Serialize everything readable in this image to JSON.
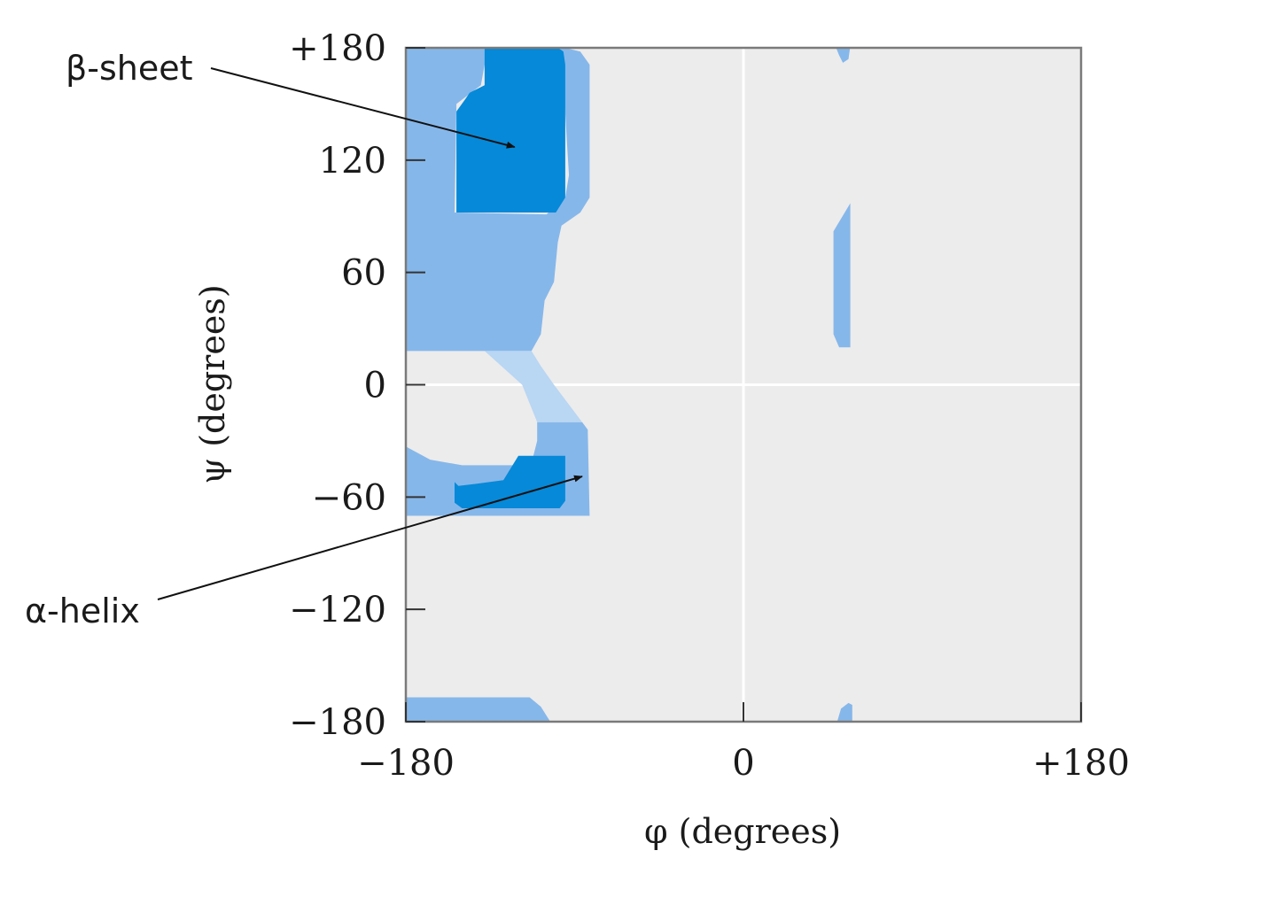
{
  "chart_data": {
    "type": "area",
    "xlabel": "φ (degrees)",
    "ylabel": "ψ (degrees)",
    "xlim": [
      -180,
      180
    ],
    "ylim": [
      -180,
      180
    ],
    "x_ticks": [
      {
        "value": -180,
        "label": "−180"
      },
      {
        "value": 0,
        "label": "0"
      },
      {
        "value": 180,
        "label": "+180"
      }
    ],
    "y_ticks": [
      {
        "value": 180,
        "label": "+180"
      },
      {
        "value": 120,
        "label": "120"
      },
      {
        "value": 60,
        "label": "60"
      },
      {
        "value": 0,
        "label": "0"
      },
      {
        "value": -60,
        "label": "−60"
      },
      {
        "value": -120,
        "label": "−120"
      },
      {
        "value": -180,
        "label": "−180"
      }
    ],
    "colors": {
      "background": "#ececec",
      "frame": "#7a7a7a",
      "gridline": "#ffffff",
      "allowed": "#86b7ea",
      "favored": "#0689d8",
      "bridge": "#b9d6f3"
    },
    "regions": [
      {
        "kind": "allowed",
        "points": [
          [
            -180,
            180
          ],
          [
            -138,
            180
          ],
          [
            -138,
            171
          ],
          [
            -132,
            172
          ],
          [
            -128,
            182
          ],
          [
            -180,
            182
          ]
        ]
      },
      {
        "kind": "allowed",
        "points": [
          [
            -180,
            180
          ],
          [
            -135,
            180
          ],
          [
            -138,
            171
          ],
          [
            -140,
            160
          ],
          [
            -153,
            150
          ],
          [
            -154,
            92
          ],
          [
            -105,
            91
          ],
          [
            -100,
            96
          ],
          [
            -95,
            100
          ],
          [
            -93,
            112
          ],
          [
            -94,
            128
          ],
          [
            -96,
            163
          ],
          [
            -98,
            172
          ],
          [
            -103,
            178
          ],
          [
            -95,
            180
          ],
          [
            -87,
            178
          ],
          [
            -82,
            171
          ],
          [
            -82,
            100
          ],
          [
            -87,
            92
          ],
          [
            -97,
            85
          ],
          [
            -99,
            76
          ],
          [
            -101,
            55
          ],
          [
            -106,
            45
          ],
          [
            -108,
            27
          ],
          [
            -113,
            18
          ],
          [
            -180,
            18
          ],
          [
            -180,
            45
          ]
        ]
      },
      {
        "kind": "allowed",
        "points": [
          [
            -180,
            -33
          ],
          [
            -167,
            -40
          ],
          [
            -150,
            -43
          ],
          [
            -118,
            -43
          ],
          [
            -112,
            -38
          ],
          [
            -110,
            -30
          ],
          [
            -110,
            -20
          ],
          [
            -86,
            -20
          ],
          [
            -83,
            -24
          ],
          [
            -82,
            -70
          ],
          [
            -180,
            -70
          ]
        ]
      },
      {
        "kind": "allowed",
        "points": [
          [
            -180,
            -167
          ],
          [
            -180,
            -180
          ],
          [
            -130,
            -180
          ],
          [
            -103,
            -180
          ],
          [
            -108,
            -172
          ],
          [
            -114,
            -167
          ]
        ]
      },
      {
        "kind": "allowed",
        "points": [
          [
            49,
            181
          ],
          [
            57,
            181
          ],
          [
            56,
            174
          ],
          [
            53,
            172
          ],
          [
            51,
            176
          ]
        ]
      },
      {
        "kind": "allowed",
        "points": [
          [
            50,
            -180
          ],
          [
            58,
            -180
          ],
          [
            58,
            -171
          ],
          [
            56,
            -170
          ],
          [
            52,
            -173
          ]
        ]
      },
      {
        "kind": "allowed",
        "points": [
          [
            48,
            82
          ],
          [
            57,
            97
          ],
          [
            57,
            20
          ],
          [
            51,
            20
          ],
          [
            48,
            27
          ]
        ]
      },
      {
        "kind": "bridge",
        "points": [
          [
            -113,
            18
          ],
          [
            -138,
            18
          ],
          [
            -118,
            0
          ],
          [
            -110,
            -20
          ],
          [
            -86,
            -20
          ],
          [
            -101,
            0
          ],
          [
            -108,
            10
          ]
        ]
      },
      {
        "kind": "favored",
        "points": [
          [
            -138,
            181
          ],
          [
            -134,
            181
          ],
          [
            -100,
            181
          ],
          [
            -96,
            178
          ],
          [
            -95,
            171
          ],
          [
            -95,
            100
          ],
          [
            -100,
            92
          ],
          [
            -153,
            92
          ],
          [
            -153,
            146
          ],
          [
            -148,
            153
          ],
          [
            -146,
            156
          ],
          [
            -138,
            160
          ],
          [
            -138,
            172
          ]
        ]
      },
      {
        "kind": "favored",
        "points": [
          [
            -154,
            -52
          ],
          [
            -152,
            -54
          ],
          [
            -143,
            -53
          ],
          [
            -128,
            -51
          ],
          [
            -120,
            -38
          ],
          [
            -95,
            -38
          ],
          [
            -95,
            -62
          ],
          [
            -98,
            -66
          ],
          [
            -150,
            -66
          ],
          [
            -154,
            -63
          ]
        ]
      }
    ],
    "annotations": [
      {
        "text": "β-sheet",
        "target": [
          -122,
          127
        ]
      },
      {
        "text": "α-helix",
        "target": [
          -86,
          -49
        ]
      }
    ]
  }
}
